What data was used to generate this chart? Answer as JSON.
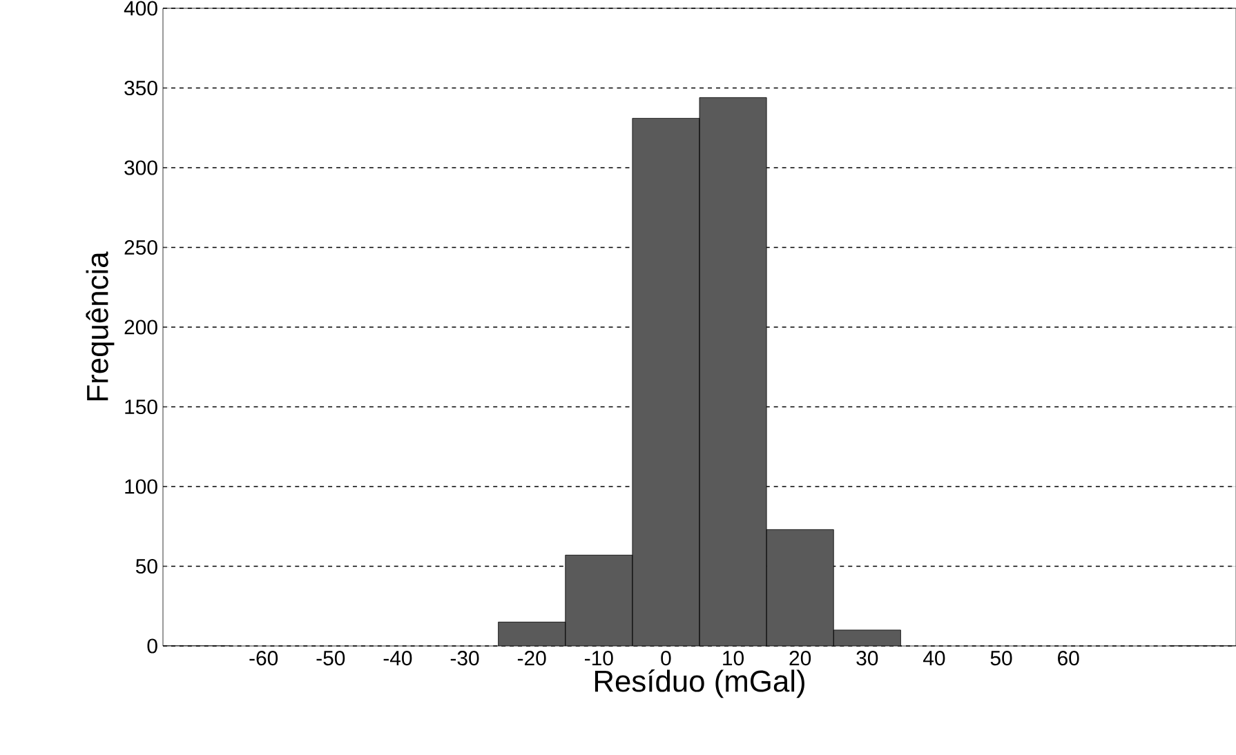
{
  "chart_data": {
    "type": "bar",
    "xlabel": "Resíduo (mGal)",
    "ylabel": "Frequência",
    "categories": [
      null,
      "-60",
      "-50",
      "-40",
      "-30",
      "-20",
      "-10",
      "0",
      "10",
      "20",
      "30",
      "40",
      "50",
      "60",
      null,
      null
    ],
    "values": [
      0,
      null,
      null,
      null,
      null,
      15,
      57,
      331,
      344,
      73,
      10,
      null,
      null,
      null,
      null,
      0
    ],
    "color": "#5a5a5a",
    "ylim": [
      0,
      400
    ],
    "yticks": [
      0,
      50,
      100,
      150,
      200,
      250,
      300,
      350,
      400
    ],
    "grid": "y",
    "line_style": "dashed"
  }
}
